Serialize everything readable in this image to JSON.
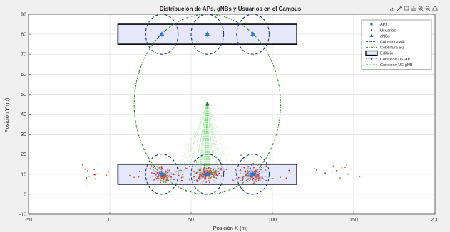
{
  "toolbar": {
    "icons": [
      "export-icon",
      "brush-icon",
      "data-tips-icon",
      "pan-icon",
      "zoom-in-icon",
      "zoom-out-icon",
      "home-icon"
    ]
  },
  "colors": {
    "figure_bg": "#f0f0f0",
    "axes_bg": "#ffffff",
    "grid": "#dcdcdc",
    "building_fill": "#e6e8fa",
    "building_edge": "#000000",
    "wifi": "#1f3a78",
    "g5": "#2e8b22",
    "ap": "#2a7fd4",
    "user": "#d0324a",
    "gnb": "#1e7a1e",
    "link_ap": "#3a6fe0",
    "link_gnb": "#5fd85f"
  },
  "chart_data": {
    "type": "scatter",
    "title": "Distribución de APs, gNBs y Usuarios en el Campus",
    "xlabel": "Posición X (m)",
    "ylabel": "Posición Y (m)",
    "xlim": [
      -50,
      200
    ],
    "ylim": [
      -10,
      90
    ],
    "xticks": [
      -50,
      0,
      50,
      100,
      150,
      200
    ],
    "yticks": [
      -10,
      0,
      10,
      20,
      30,
      40,
      50,
      60,
      70,
      80,
      90
    ],
    "grid": true,
    "legend_position": "top-right",
    "legend": [
      {
        "key": "aps",
        "label": "APs"
      },
      {
        "key": "users",
        "label": "Usuarios"
      },
      {
        "key": "gnbs",
        "label": "gNBs"
      },
      {
        "key": "wifi",
        "label": "Cobertura wifi"
      },
      {
        "key": "g5",
        "label": "Cobertura 5G"
      },
      {
        "key": "building",
        "label": "Edificio"
      },
      {
        "key": "link_ap",
        "label": "Conexion UE-AP"
      },
      {
        "key": "link_gnb",
        "label": "Conexion UE-gNB"
      }
    ],
    "buildings": [
      {
        "x": [
          5,
          115
        ],
        "y": [
          75,
          85
        ]
      },
      {
        "x": [
          5,
          115
        ],
        "y": [
          5,
          15
        ]
      }
    ],
    "aps": [
      {
        "x": 32,
        "y": 80
      },
      {
        "x": 60,
        "y": 80
      },
      {
        "x": 88,
        "y": 80
      },
      {
        "x": 32,
        "y": 10
      },
      {
        "x": 60,
        "y": 10
      },
      {
        "x": 88,
        "y": 10
      }
    ],
    "wifi_radius": 10,
    "gnbs": [
      {
        "x": 60,
        "y": 45
      }
    ],
    "g5_radius": 45,
    "user_clusters": [
      {
        "cx": 32,
        "cy": 10,
        "sx": 6,
        "sy": 3.5,
        "n": 95
      },
      {
        "cx": 60,
        "cy": 10,
        "sx": 7,
        "sy": 3.5,
        "n": 130
      },
      {
        "cx": 88,
        "cy": 10,
        "sx": 6,
        "sy": 3.5,
        "n": 95
      },
      {
        "cx": 60,
        "cy": 10,
        "sx": 38,
        "sy": 5,
        "n": 70
      },
      {
        "cx": 140,
        "cy": 11,
        "sx": 16,
        "sy": 4,
        "n": 14
      },
      {
        "cx": -10,
        "cy": 11,
        "sx": 10,
        "sy": 4,
        "n": 14
      }
    ]
  }
}
